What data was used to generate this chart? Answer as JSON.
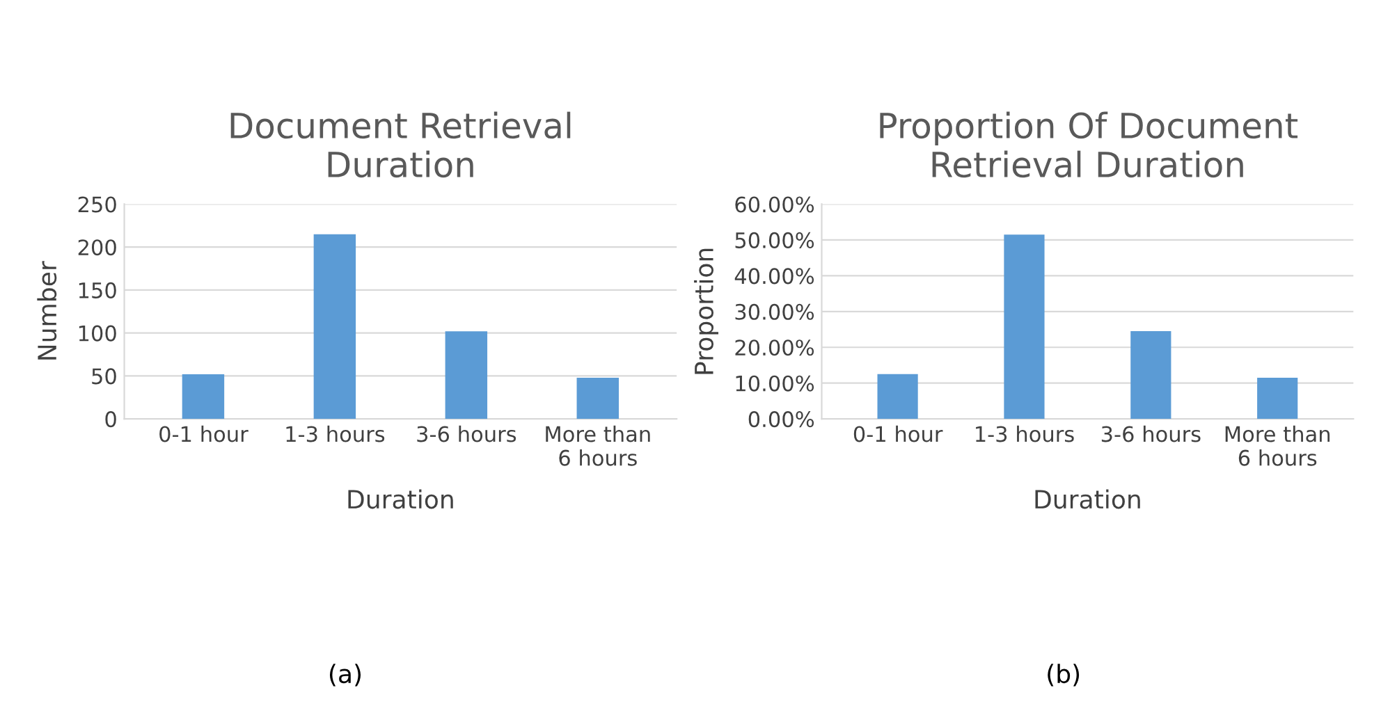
{
  "chart_data": [
    {
      "type": "bar",
      "title": "Document Retrieval\nDuration",
      "xlabel": "Duration",
      "ylabel": "Number",
      "categories": [
        "0-1 hour",
        "1-3 hours",
        "3-6 hours",
        "More than\n6 hours"
      ],
      "values": [
        52,
        215,
        102,
        48
      ],
      "color": "#5b9bd5",
      "ylim": [
        0,
        250
      ],
      "yticks": [
        0,
        50,
        100,
        150,
        200,
        250
      ],
      "grid": "y",
      "legend": false,
      "annotations": [
        "(a)"
      ]
    },
    {
      "type": "bar",
      "title": "Proportion Of Document\nRetrieval Duration",
      "xlabel": "Duration",
      "ylabel": "Proportion",
      "categories": [
        "0-1 hour",
        "1-3 hours",
        "3-6 hours",
        "More than\n6 hours"
      ],
      "values": [
        12.5,
        51.5,
        24.5,
        11.5
      ],
      "color": "#5b9bd5",
      "ylim": [
        0,
        60
      ],
      "yticks": [
        {
          "value": 0,
          "label": "0.00%"
        },
        {
          "value": 10,
          "label": "10.00%"
        },
        {
          "value": 20,
          "label": "20.00%"
        },
        {
          "value": 30,
          "label": "30.00%"
        },
        {
          "value": 40,
          "label": "40.00%"
        },
        {
          "value": 50,
          "label": "50.00%"
        },
        {
          "value": 60,
          "label": "60.00%"
        }
      ],
      "grid": "y",
      "legend": false,
      "annotations": [
        "(b)"
      ]
    }
  ]
}
